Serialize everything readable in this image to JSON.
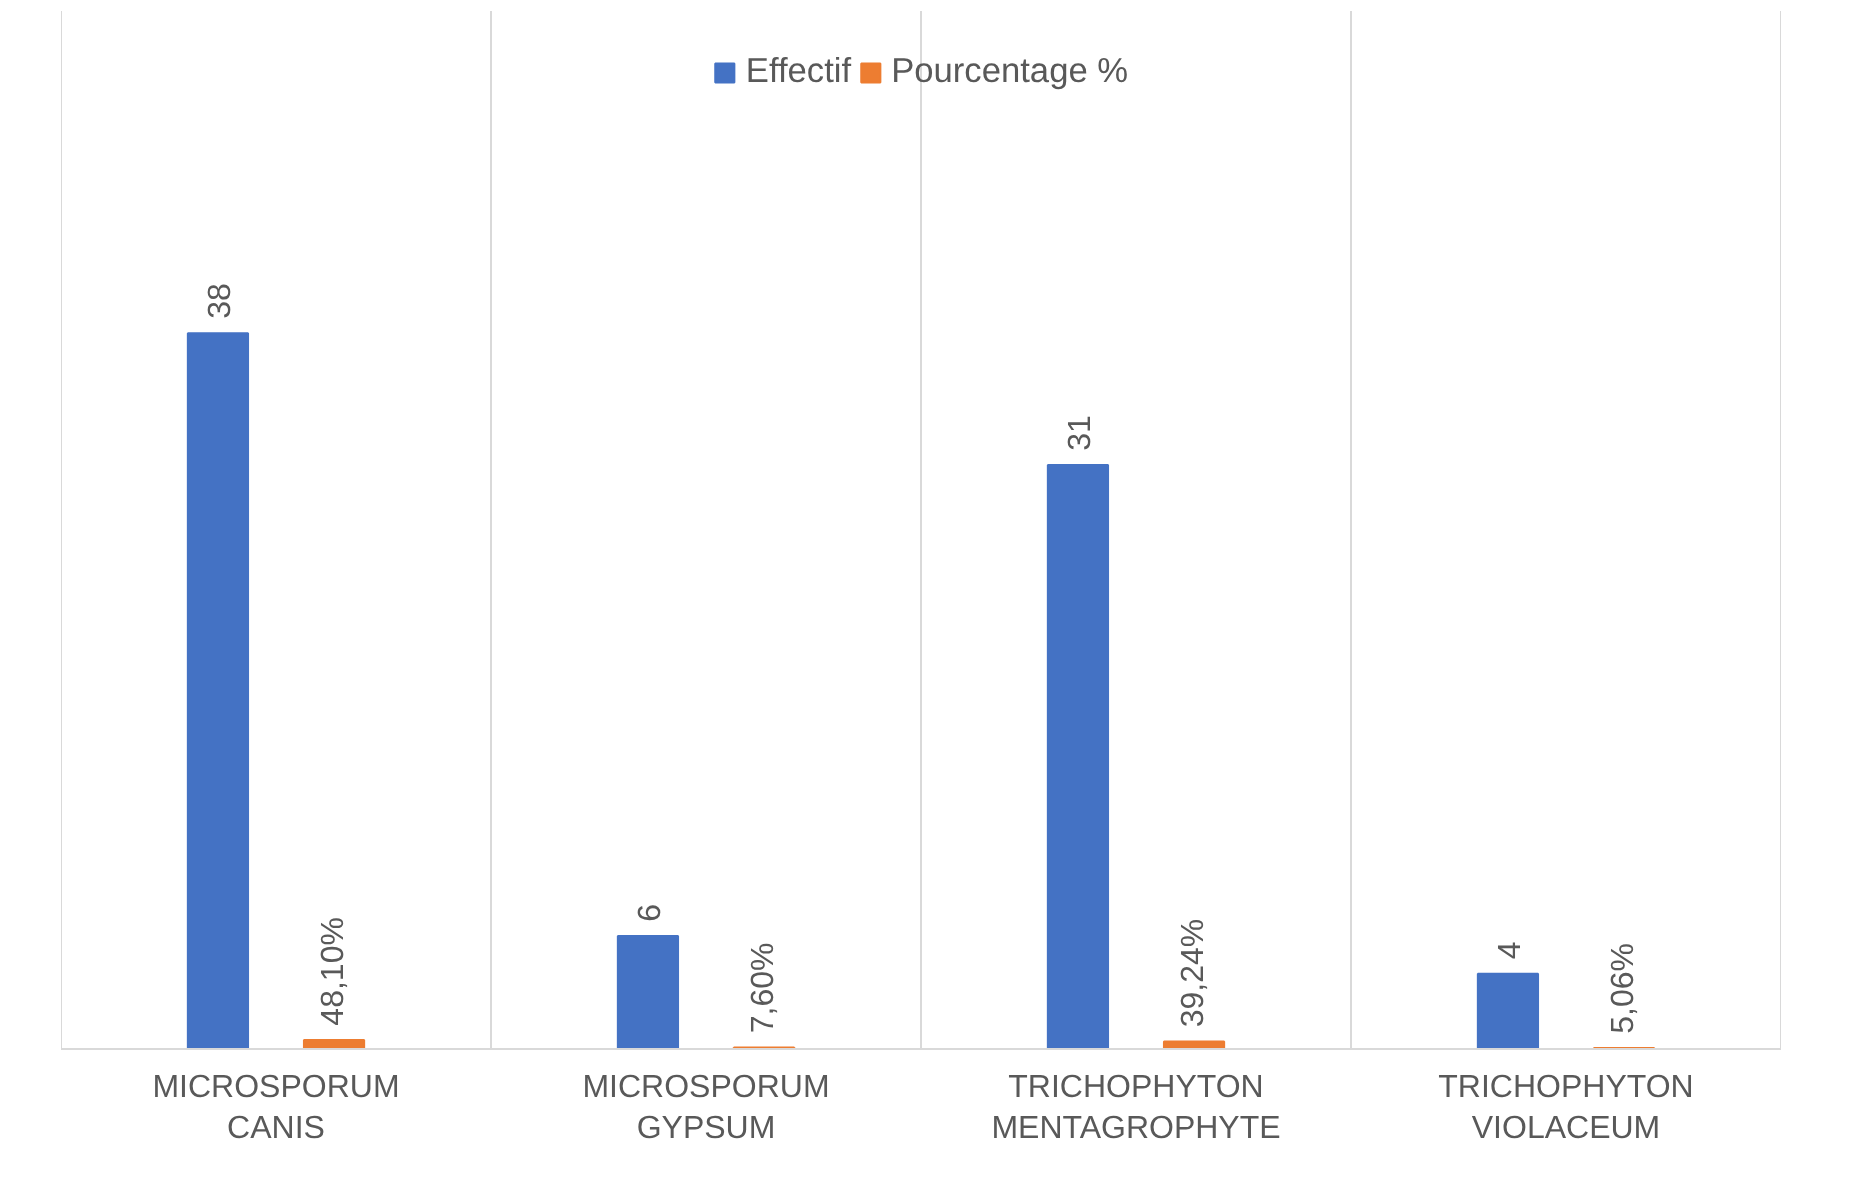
{
  "chart_data": {
    "type": "bar",
    "categories": [
      "MICROSPORUM\nCANIS",
      "MICROSPORUM\nGYPSUM",
      "TRICHOPHYTON\nMENTAGROPHYTE",
      "TRICHOPHYTON\nVIOLACEUM"
    ],
    "series": [
      {
        "name": "Effectif",
        "color": "#4472c4",
        "values": [
          38,
          6,
          31,
          4
        ],
        "value_labels": [
          "38",
          "6",
          "31",
          "4"
        ]
      },
      {
        "name": "Pourcentage %",
        "color": "#ed7d31",
        "values": [
          0.481,
          0.076,
          0.3924,
          0.0506
        ],
        "value_labels": [
          "48,10%",
          "7,60%",
          "39,24%",
          "5,06%"
        ]
      }
    ],
    "grid": "x",
    "legend": "top"
  }
}
